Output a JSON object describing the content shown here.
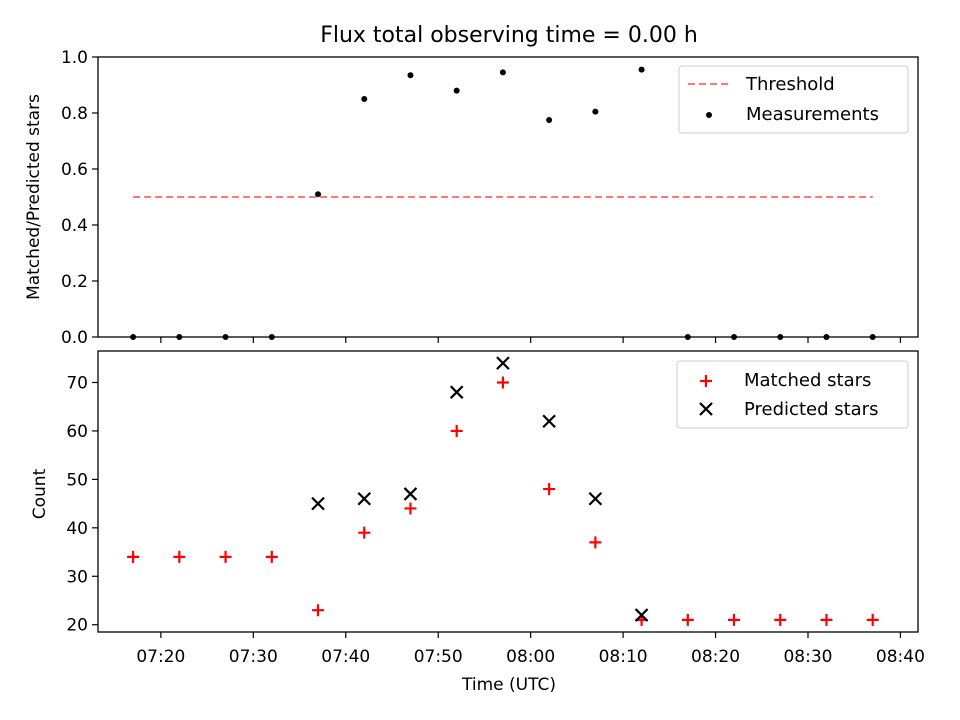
{
  "title": "Flux total observing time = 0.00 h",
  "colors": {
    "threshold": "#ff7777",
    "measurement": "#000000",
    "matched": "#ff0000",
    "predicted": "#000000"
  },
  "chart_data": [
    {
      "type": "scatter",
      "ylabel": "Matched/Predicted stars",
      "ylim": [
        0,
        1.0
      ],
      "yticks": [
        "0.0",
        "0.2",
        "0.4",
        "0.6",
        "0.8",
        "1.0"
      ],
      "grid": false,
      "legend_position": "top-right",
      "x": [
        "07:17",
        "07:22",
        "07:27",
        "07:32",
        "07:37",
        "07:42",
        "07:47",
        "07:52",
        "07:57",
        "08:02",
        "08:07",
        "08:12",
        "08:17",
        "08:22",
        "08:27",
        "08:32",
        "08:37"
      ],
      "series": [
        {
          "name": "Threshold",
          "kind": "dashed-line",
          "values": [
            0.5,
            0.5,
            0.5,
            0.5,
            0.5,
            0.5,
            0.5,
            0.5,
            0.5,
            0.5,
            0.5,
            0.5,
            0.5,
            0.5,
            0.5,
            0.5,
            0.5
          ]
        },
        {
          "name": "Measurements",
          "kind": "dot",
          "values": [
            0,
            0,
            0,
            0,
            0.51,
            0.85,
            0.935,
            0.88,
            0.945,
            0.775,
            0.805,
            0.955,
            0,
            0,
            0,
            0,
            0
          ]
        }
      ]
    },
    {
      "type": "scatter",
      "xlabel": "Time (UTC)",
      "ylabel": "Count",
      "ylim": [
        18.5,
        76.5
      ],
      "yticks": [
        "20",
        "30",
        "40",
        "50",
        "60",
        "70"
      ],
      "xticks": [
        "07:20",
        "07:30",
        "07:40",
        "07:50",
        "08:00",
        "08:10",
        "08:20",
        "08:30",
        "08:40"
      ],
      "grid": false,
      "legend_position": "top-right",
      "series": [
        {
          "name": "Matched stars",
          "kind": "plus",
          "x": [
            "07:17",
            "07:22",
            "07:27",
            "07:32",
            "07:37",
            "07:42",
            "07:47",
            "07:52",
            "07:57",
            "08:02",
            "08:07",
            "08:12",
            "08:17",
            "08:22",
            "08:27",
            "08:32",
            "08:37"
          ],
          "values": [
            34,
            34,
            34,
            34,
            23,
            39,
            44,
            60,
            70,
            48,
            37,
            21,
            21,
            21,
            21,
            21,
            21
          ]
        },
        {
          "name": "Predicted stars",
          "kind": "x",
          "x": [
            "07:37",
            "07:42",
            "07:47",
            "07:52",
            "07:57",
            "08:02",
            "08:07",
            "08:12"
          ],
          "values": [
            45,
            46,
            47,
            68,
            74,
            62,
            46,
            22
          ]
        }
      ]
    }
  ]
}
